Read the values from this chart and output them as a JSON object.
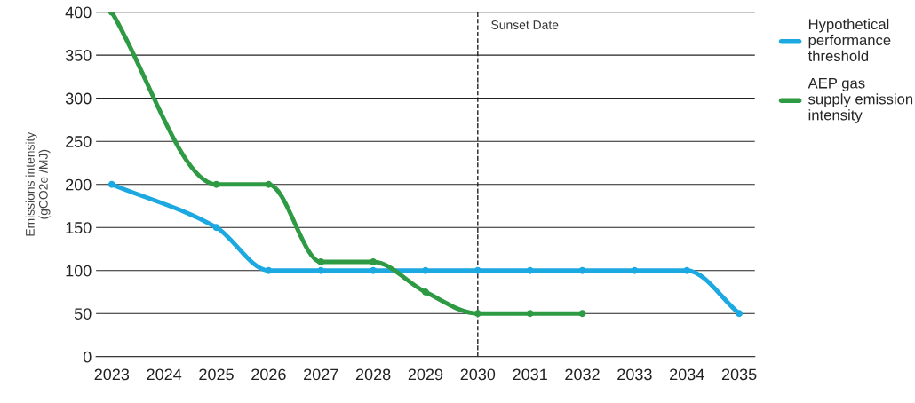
{
  "chart_data": {
    "type": "line",
    "ylabel": "Emissions intensity\n(gCO2e /MJ)",
    "xlim": [
      2022.7,
      2035.3
    ],
    "xticks": [
      2023,
      2024,
      2025,
      2026,
      2027,
      2028,
      2029,
      2030,
      2031,
      2032,
      2033,
      2034,
      2035
    ],
    "ylim": [
      0,
      400
    ],
    "yticks": [
      0,
      50,
      100,
      150,
      200,
      250,
      300,
      350,
      400
    ],
    "grid": "y",
    "legend": "right",
    "marker": "circle",
    "line_style": "solid",
    "series": [
      {
        "name": "Hypothetical\nperformance\nthreshold",
        "color": "#1ca9e1",
        "x": [
          2023,
          2025,
          2026,
          2027,
          2028,
          2029,
          2030,
          2031,
          2032,
          2033,
          2034,
          2035
        ],
        "values": [
          200,
          150,
          100,
          100,
          100,
          100,
          100,
          100,
          100,
          100,
          100,
          50
        ]
      },
      {
        "name": "AEP gas\nsupply emission\nintensity",
        "color": "#2e9a43",
        "x": [
          2023,
          2025,
          2026,
          2027,
          2028,
          2029,
          2030,
          2031,
          2032
        ],
        "values": [
          400,
          200,
          200,
          110,
          110,
          75,
          50,
          50,
          50
        ]
      }
    ],
    "ref_lines": [
      {
        "axis": "x",
        "value": 2030,
        "label": "Sunset Date",
        "color": "#222222",
        "line_style": "dashed"
      }
    ]
  }
}
